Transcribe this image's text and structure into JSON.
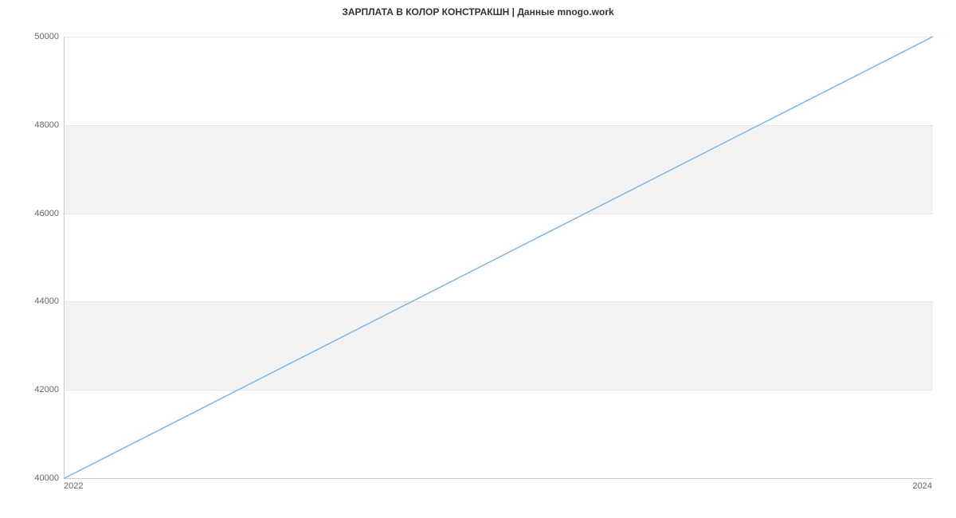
{
  "chart": {
    "type": "line",
    "title": "ЗАРПЛАТА В КОЛОР КОНСТРАКШН | Данные mnogo.work",
    "title_fontsize": 12,
    "title_color": "#333333",
    "background_color": "#ffffff",
    "plot_band_color": "#f3f3f3",
    "grid_color": "#e6e6e6",
    "axis_line_color": "#cccccc",
    "tick_label_color": "#666666",
    "tick_label_fontsize": 11,
    "line_color": "#7cb5ec",
    "line_width": 1.5,
    "x": {
      "ticks": [
        2022,
        2024
      ],
      "lim": [
        2022,
        2024
      ]
    },
    "y": {
      "ticks": [
        40000,
        42000,
        44000,
        46000,
        48000,
        50000
      ],
      "lim": [
        40000,
        50000
      ]
    },
    "series": [
      {
        "x": 2022,
        "y": 40000
      },
      {
        "x": 2024,
        "y": 50000
      }
    ],
    "plot_bands": [
      {
        "from": 42000,
        "to": 44000
      },
      {
        "from": 46000,
        "to": 48000
      }
    ]
  }
}
